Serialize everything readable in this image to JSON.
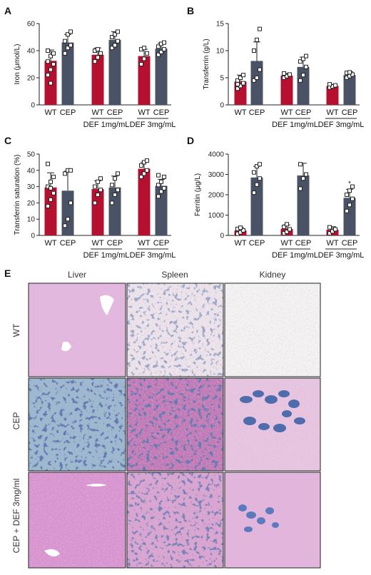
{
  "panel_letters": [
    "A",
    "B",
    "C",
    "D",
    "E"
  ],
  "colors": {
    "wt": "#b5102f",
    "cep": "#4a5366",
    "point_fill": "#ffffff",
    "point_stroke": "#222222"
  },
  "chart_data": [
    {
      "id": "A",
      "type": "bar",
      "ylabel": "Iron (μmol/L)",
      "ylim": [
        0,
        60
      ],
      "yticks": [
        0,
        20,
        40,
        60
      ],
      "categories": [
        "WT",
        "CEP",
        "WT",
        "CEP",
        "WT",
        "CEP"
      ],
      "groups": [
        "",
        "DEF 1mg/mL",
        "DEF 3mg/mL"
      ],
      "values": [
        32.5,
        46,
        37,
        48,
        36,
        41.5
      ],
      "sd": [
        8,
        6,
        5,
        6,
        5,
        4
      ],
      "points": [
        [
          22,
          26,
          30,
          32,
          36,
          38,
          40,
          16
        ],
        [
          38,
          42,
          44,
          47,
          52,
          54
        ],
        [
          32,
          35,
          38,
          40,
          41
        ],
        [
          42,
          44,
          47,
          50,
          52,
          54
        ],
        [
          30,
          34,
          38,
          41,
          42
        ],
        [
          37,
          39,
          41,
          43,
          45,
          46
        ]
      ],
      "annotations": []
    },
    {
      "id": "B",
      "type": "bar",
      "ylabel": "Transferrin (g/L)",
      "ylim": [
        0,
        15
      ],
      "yticks": [
        0,
        5,
        10,
        15
      ],
      "categories": [
        "WT",
        "CEP",
        "WT",
        "CEP",
        "WT",
        "CEP"
      ],
      "groups": [
        "",
        "DEF 1mg/mL",
        "DEF 3mg/mL"
      ],
      "values": [
        4.3,
        8.1,
        5.4,
        7.0,
        3.5,
        5.5
      ],
      "sd": [
        1.2,
        3.5,
        0.4,
        1.8,
        0.3,
        0.6
      ],
      "points": [
        [
          3,
          3.5,
          4,
          4.5,
          5,
          5.5,
          3.8
        ],
        [
          4.5,
          5,
          6.5,
          10,
          12,
          14
        ],
        [
          5,
          5.3,
          5.6,
          5.8
        ],
        [
          4.5,
          5.5,
          7,
          8,
          8.5,
          9
        ],
        [
          3.2,
          3.4,
          3.6,
          3.8
        ],
        [
          5,
          5.3,
          5.6,
          5.9,
          6
        ]
      ],
      "annotations": []
    },
    {
      "id": "C",
      "type": "bar",
      "ylabel": "Transferrin saturation (%)",
      "ylim": [
        0,
        50
      ],
      "yticks": [
        0,
        10,
        20,
        30,
        40,
        50
      ],
      "categories": [
        "WT",
        "CEP",
        "WT",
        "CEP",
        "WT",
        "CEP"
      ],
      "groups": [
        "",
        "DEF 1mg/mL",
        "DEF 3mg/mL"
      ],
      "values": [
        29.5,
        27.5,
        28.5,
        29.5,
        41,
        30.5
      ],
      "sd": [
        9,
        12,
        5,
        7,
        4,
        4
      ],
      "points": [
        [
          18,
          22,
          26,
          30,
          33,
          36,
          44,
          29
        ],
        [
          6,
          10,
          20,
          38,
          40,
          40
        ],
        [
          20,
          25,
          28,
          30,
          33,
          35
        ],
        [
          20,
          25,
          28,
          31,
          35,
          38
        ],
        [
          36,
          38,
          40,
          43,
          45,
          46
        ],
        [
          24,
          27,
          29,
          31,
          33,
          36,
          37
        ]
      ],
      "annotations": []
    },
    {
      "id": "D",
      "type": "bar",
      "ylabel": "Ferritin (μg/L)",
      "ylim": [
        0,
        4000
      ],
      "yticks": [
        0,
        1000,
        2000,
        3000,
        4000
      ],
      "categories": [
        "WT",
        "CEP",
        "WT",
        "CEP",
        "WT",
        "CEP"
      ],
      "groups": [
        "",
        "DEF 1mg/mL",
        "DEF 3mg/mL"
      ],
      "values": [
        240,
        2850,
        320,
        2950,
        280,
        1850
      ],
      "sd": [
        150,
        550,
        200,
        600,
        150,
        420
      ],
      "points": [
        [
          80,
          150,
          250,
          320,
          380
        ],
        [
          2100,
          2500,
          2800,
          3100,
          3400,
          3500
        ],
        [
          100,
          180,
          300,
          420,
          550
        ],
        [
          2300,
          2800,
          3000,
          3500
        ],
        [
          100,
          200,
          300,
          400
        ],
        [
          1200,
          1500,
          1800,
          2000,
          2200,
          2400
        ]
      ],
      "annotations": [
        {
          "bar_index": 5,
          "text": "*"
        }
      ]
    }
  ],
  "micrographs": {
    "columns": [
      "Liver",
      "Spleen",
      "Kidney"
    ],
    "rows": [
      "WT",
      "CEP",
      "CEP + DEF 3mg/ml"
    ]
  }
}
